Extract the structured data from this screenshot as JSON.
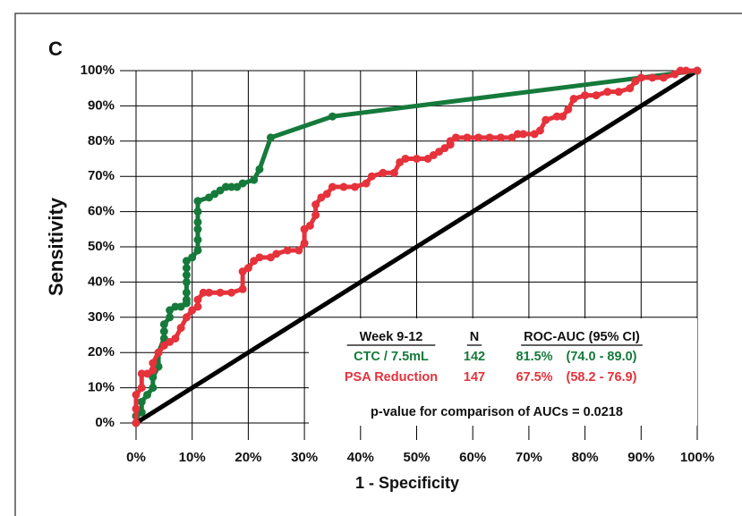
{
  "chart_data": {
    "type": "line",
    "panel_label": "C",
    "xlabel": "1 - Specificity",
    "ylabel": "Sensitivity",
    "xlim": [
      0,
      100
    ],
    "ylim": [
      0,
      100
    ],
    "xticks": [
      {
        "value": 0,
        "label": "0%"
      },
      {
        "value": 10,
        "label": "10%"
      },
      {
        "value": 20,
        "label": "20%"
      },
      {
        "value": 30,
        "label": "30%"
      },
      {
        "value": 40,
        "label": "40%"
      },
      {
        "value": 50,
        "label": "50%"
      },
      {
        "value": 60,
        "label": "60%"
      },
      {
        "value": 70,
        "label": "70%"
      },
      {
        "value": 80,
        "label": "80%"
      },
      {
        "value": 90,
        "label": "90%"
      },
      {
        "value": 100,
        "label": "100%"
      }
    ],
    "yticks": [
      {
        "value": 0,
        "label": "0%"
      },
      {
        "value": 10,
        "label": "10%"
      },
      {
        "value": 20,
        "label": "20%"
      },
      {
        "value": 30,
        "label": "30%"
      },
      {
        "value": 40,
        "label": "40%"
      },
      {
        "value": 50,
        "label": "50%"
      },
      {
        "value": 60,
        "label": "60%"
      },
      {
        "value": 70,
        "label": "70%"
      },
      {
        "value": 80,
        "label": "80%"
      },
      {
        "value": 90,
        "label": "90%"
      },
      {
        "value": 100,
        "label": "100%"
      }
    ],
    "grid": true,
    "series": [
      {
        "name": "CTC / 7.5mL",
        "color": "#157a3b",
        "x": [
          0,
          0,
          1,
          1,
          2,
          3,
          3,
          4,
          4,
          5,
          5,
          5,
          6,
          6,
          7,
          8,
          9,
          9,
          9,
          9,
          9,
          9,
          9,
          10,
          11,
          11,
          11,
          11,
          11,
          11,
          13,
          14,
          15,
          16,
          17,
          18,
          19,
          21,
          22,
          24,
          35,
          100
        ],
        "values": [
          0,
          2,
          3,
          6,
          8,
          10,
          13,
          16,
          20,
          24,
          26,
          28,
          30,
          32,
          33,
          33,
          34,
          35,
          37,
          40,
          42,
          44,
          46,
          47,
          49,
          52,
          55,
          57,
          60,
          63,
          64,
          65,
          66,
          67,
          67,
          67,
          68,
          69,
          72,
          81,
          87,
          100
        ]
      },
      {
        "name": "PSA Reduction",
        "color": "#e5323b",
        "x": [
          0,
          0,
          0,
          1,
          1,
          2,
          3,
          3,
          4,
          5,
          6,
          7,
          8,
          9,
          10,
          11,
          11,
          12,
          13,
          15,
          17,
          19,
          19,
          20,
          21,
          22,
          24,
          25,
          27,
          29,
          30,
          30,
          31,
          32,
          32,
          33,
          34,
          35,
          37,
          39,
          41,
          42,
          44,
          46,
          47,
          48,
          50,
          52,
          53,
          54,
          55,
          56,
          56,
          57,
          59,
          61,
          63,
          65,
          67,
          68,
          69,
          71,
          72,
          73,
          75,
          76,
          77,
          78,
          80,
          82,
          84,
          86,
          88,
          89,
          90,
          92,
          94,
          96,
          97,
          98,
          100
        ],
        "values": [
          0,
          4,
          8,
          10,
          14,
          14,
          15,
          17,
          20,
          22,
          23,
          24,
          27,
          30,
          32,
          33,
          35,
          37,
          37,
          37,
          37,
          38,
          43,
          44,
          46,
          47,
          47,
          48,
          49,
          49,
          51,
          55,
          56,
          59,
          62,
          64,
          65,
          67,
          67,
          67,
          68,
          70,
          71,
          71,
          74,
          75,
          75,
          75,
          76,
          77,
          78,
          79,
          80,
          81,
          81,
          81,
          81,
          81,
          81,
          82,
          82,
          82,
          83,
          86,
          87,
          87,
          89,
          92,
          93,
          93,
          94,
          94,
          95,
          97,
          98,
          98,
          98,
          99,
          100,
          100,
          100
        ]
      }
    ],
    "reference_line": {
      "color": "#000000",
      "x": [
        0,
        100
      ],
      "values": [
        0,
        100
      ]
    },
    "table": {
      "header": [
        "Week 9-12",
        "N",
        "ROC-AUC (95% CI)"
      ],
      "rows": [
        [
          "CTC / 7.5mL",
          "142",
          "81.5%",
          "(74.0 - 89.0)"
        ],
        [
          "PSA Reduction",
          "147",
          "67.5%",
          "(58.2 - 76.9)"
        ]
      ],
      "note": "p-value for comparison of AUCs = 0.0218"
    }
  }
}
